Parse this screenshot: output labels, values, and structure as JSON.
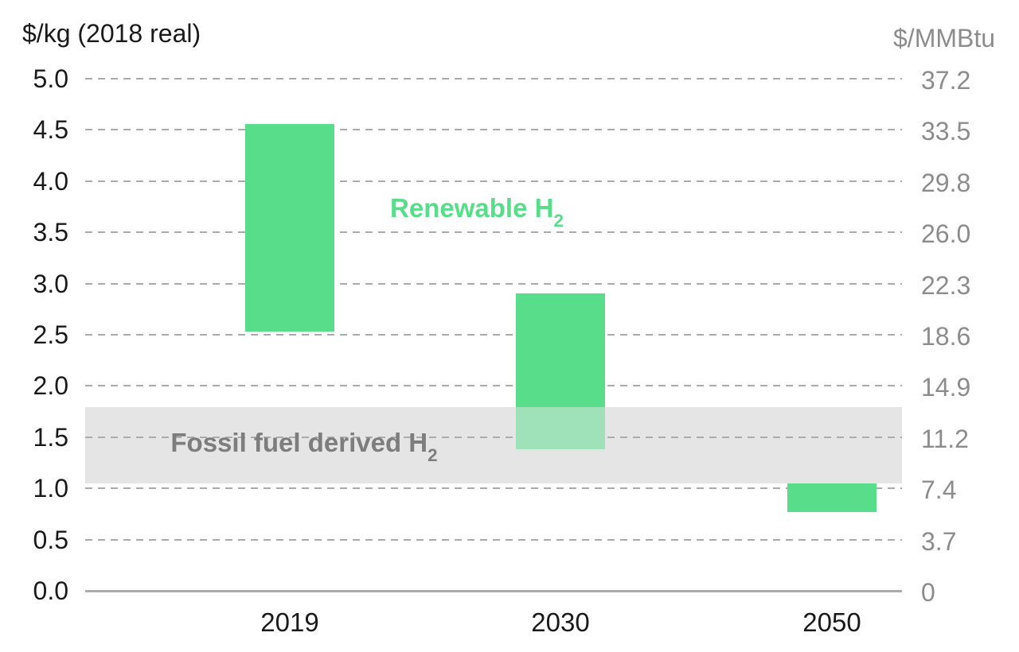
{
  "chart_data": {
    "type": "bar",
    "subtype": "floating-range-columns",
    "categories": [
      "2019",
      "2030",
      "2050"
    ],
    "series": [
      {
        "name": "Renewable H2",
        "color": "#58DD8A",
        "unit": "$/kg (2018 real)",
        "ranges": [
          [
            2.53,
            4.56
          ],
          [
            1.38,
            2.9
          ],
          [
            0.77,
            1.05
          ]
        ]
      }
    ],
    "band": {
      "name": "Fossil fuel derived H2",
      "from": 1.05,
      "to": 1.79,
      "color": "#E5E5E5",
      "overlay_alpha_over_bars": 0.5
    },
    "left_axis": {
      "title": "$/kg (2018 real)",
      "min": 0.0,
      "max": 5.0,
      "step": 0.5,
      "tick_labels_top_to_bottom": [
        "5.0",
        "4.5",
        "4.0",
        "3.5",
        "3.0",
        "2.5",
        "2.0",
        "1.5",
        "1.0",
        "0.5",
        "0.0"
      ],
      "text_color": "#1A1A1A"
    },
    "right_axis": {
      "title": "$/MMBtu",
      "conversion_factor_per_kg": 7.44,
      "tick_labels_top_to_bottom": [
        "37.2",
        "33.5",
        "29.8",
        "26.0",
        "22.3",
        "18.6",
        "14.9",
        "11.2",
        "7.4",
        "3.7",
        "0"
      ],
      "text_color": "#8C8C8C"
    },
    "x_axis": {
      "labels": [
        "2019",
        "2030",
        "2050"
      ],
      "text_color": "#1A1A1A"
    },
    "annotations": [
      {
        "id": "renewable",
        "text": "Renewable H",
        "sub": "2",
        "color": "#58DD8A"
      },
      {
        "id": "fossil",
        "text": "Fossil fuel derived H",
        "sub": "2",
        "color": "#7D7D7D"
      }
    ],
    "grid": {
      "style": "dashed",
      "color": "#ABABAB",
      "baseline_color": "#ABABAB"
    },
    "legend_position": "none",
    "background": "#FFFFFF"
  }
}
